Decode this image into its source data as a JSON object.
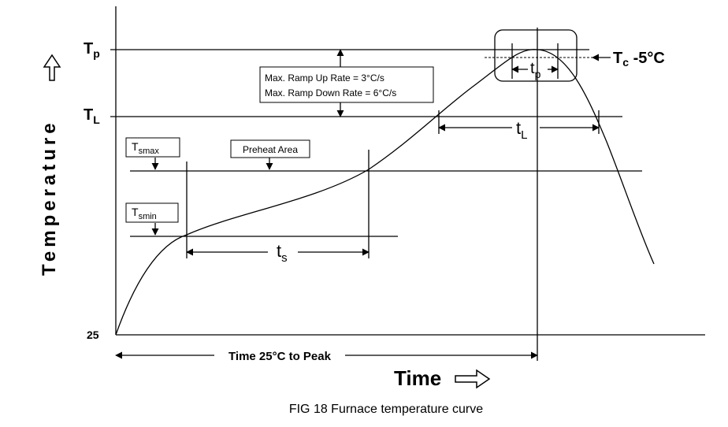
{
  "diagram": {
    "axis_labels": {
      "y": "Temperature",
      "x": "Time"
    },
    "levels": {
      "tp": {
        "main": "T",
        "sub": "p"
      },
      "tl": {
        "main": "T",
        "sub": "L"
      },
      "start": "25"
    },
    "boxes": {
      "tsmax": {
        "main": "T",
        "sub": "smax"
      },
      "tsmin": {
        "main": "T",
        "sub": "smin"
      },
      "preheat": "Preheat Area",
      "ramp_up": "Max. Ramp Up Rate = 3°C/s",
      "ramp_down": "Max. Ramp Down Rate = 6°C/s"
    },
    "intervals": {
      "ts": {
        "main": "t",
        "sub": "s"
      },
      "tl": {
        "main": "t",
        "sub": "L"
      },
      "tp": {
        "main": "t",
        "sub": "p"
      },
      "to_peak": "Time 25°C to Peak"
    },
    "tc": {
      "main": "T",
      "sub": "c",
      "rest": " -5°C"
    },
    "caption": "FIG 18 Furnace temperature curve"
  }
}
